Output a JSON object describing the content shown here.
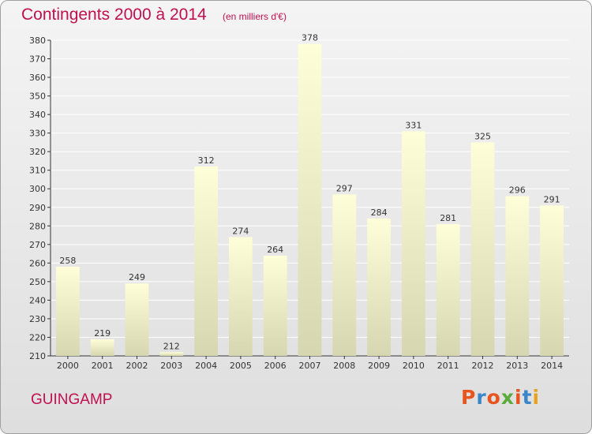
{
  "header": {
    "title": "Contingents 2000 à 2014",
    "subtitle": "(en milliers d'€)"
  },
  "footer": {
    "city": "GUINGAMP",
    "logo_text": "Proxiti",
    "logo_colors": [
      "#e8541e",
      "#3a86c8",
      "#e8541e",
      "#5aab3a",
      "#e8541e",
      "#3a86c8",
      "#e8a21e"
    ]
  },
  "colors": {
    "title": "#c0104e",
    "bar_top": "#fefed8",
    "bar_bottom": "#d6d6b0",
    "grid": "#ffffff"
  },
  "chart_data": {
    "type": "bar",
    "title": "Contingents 2000 à 2014",
    "subtitle": "(en milliers d'€)",
    "categories": [
      "2000",
      "2001",
      "2002",
      "2003",
      "2004",
      "2005",
      "2006",
      "2007",
      "2008",
      "2009",
      "2010",
      "2011",
      "2012",
      "2013",
      "2014"
    ],
    "values": [
      258,
      219,
      249,
      212,
      312,
      274,
      264,
      378,
      297,
      284,
      331,
      281,
      325,
      296,
      291
    ],
    "ylim": [
      210,
      380
    ],
    "ytick_step": 10,
    "grid": true,
    "data_labels": true,
    "xlabel": "",
    "ylabel": ""
  }
}
